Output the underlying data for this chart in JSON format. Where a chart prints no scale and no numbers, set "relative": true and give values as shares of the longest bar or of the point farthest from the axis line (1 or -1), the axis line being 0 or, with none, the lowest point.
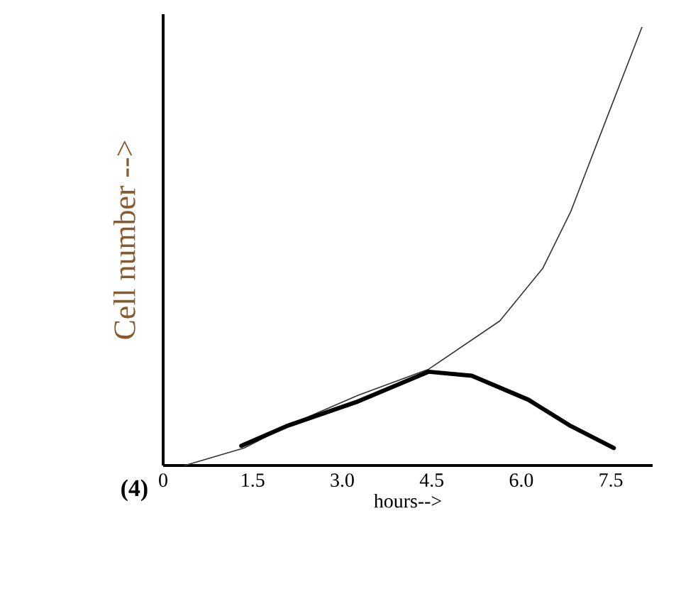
{
  "chart_data": {
    "type": "line",
    "relative": true,
    "xlabel": "hours-->",
    "ylabel": "Cell number -->",
    "annotations": [
      "(4)"
    ],
    "xlim": [
      0,
      8.2
    ],
    "xticks": [
      0,
      1.5,
      {
        "value": 3,
        "label": "3.0"
      },
      {
        "value": 4.5,
        "label": "4.5"
      },
      {
        "value": 6,
        "label": "6.0"
      },
      7.5
    ],
    "series": [
      {
        "color": "#333333",
        "x": [
          0.36,
          1.36,
          2.07,
          3.26,
          4.45,
          5.64,
          6.36,
          6.83,
          7.31,
          8.02
        ],
        "values": [
          0,
          0.04,
          0.09,
          0.16,
          0.22,
          0.33,
          0.45,
          0.58,
          0.75,
          1.0
        ]
      },
      {
        "color": "#000000",
        "x": [
          1.31,
          2.07,
          3.26,
          4.45,
          5.17,
          6.12,
          6.83,
          7.55
        ],
        "values": [
          0.045,
          0.09,
          0.146,
          0.214,
          0.205,
          0.15,
          0.09,
          0.04
        ]
      }
    ],
    "grid": false
  }
}
